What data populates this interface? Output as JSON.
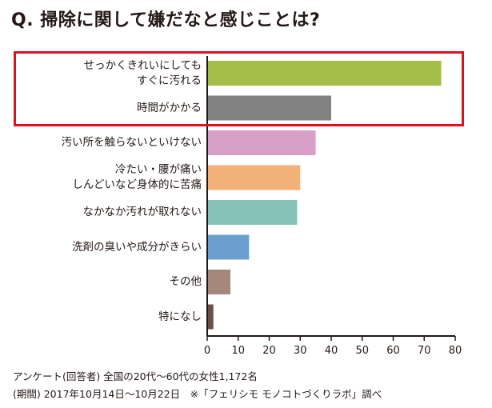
{
  "title": "Q. 掃除に関して嫌だなと感じことは?",
  "chart_data": {
    "type": "bar",
    "orientation": "horizontal",
    "categories": [
      [
        "せっかくきれいにしても",
        "すぐに汚れる"
      ],
      [
        "時間がかかる"
      ],
      [
        "汚い所を触らないといけない"
      ],
      [
        "冷たい・腰が痛い",
        "しんどいなど身体的に苦痛"
      ],
      [
        "なかなか汚れが取れない"
      ],
      [
        "洗剤の臭いや成分がきらい"
      ],
      [
        "その他"
      ],
      [
        "特になし"
      ]
    ],
    "values": [
      75.5,
      40,
      35,
      30,
      29,
      13.5,
      7.5,
      2
    ],
    "colors": [
      "#a4bd4b",
      "#818181",
      "#d8a0c6",
      "#f4b079",
      "#86c1b8",
      "#6b9fd0",
      "#a5877b",
      "#6b5045"
    ],
    "xlim": [
      0,
      80
    ],
    "xticks": [
      "0",
      "10",
      "20",
      "30",
      "40",
      "50",
      "60",
      "70",
      "80"
    ],
    "highlight": [
      "せっかくきれいにしても すぐに汚れる",
      "時間がかかる"
    ],
    "highlight_color": "#e0101e"
  },
  "notes": [
    "アンケート(回答者) 全国の20代〜60代の女性1,172名",
    "(期間) 2017年10月14日〜10月22日　※「フェリシモ モノコトづくりラボ」調べ"
  ]
}
